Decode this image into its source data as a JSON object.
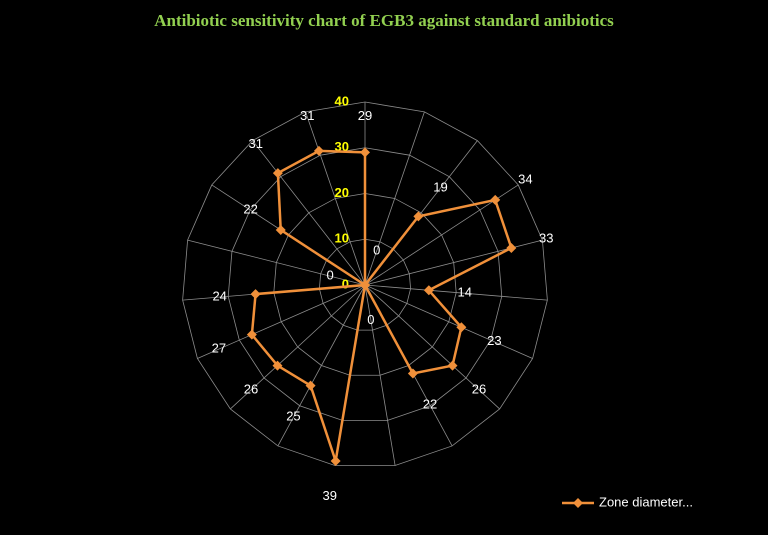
{
  "chart_data": {
    "type": "radar",
    "title": "Antibiotic  sensitivity chart of  EGB3 against standard  anibiotics",
    "series": [
      {
        "name": "Zone diameter...",
        "color": "#f0903a",
        "values": [
          29,
          0,
          19,
          34,
          33,
          14,
          23,
          26,
          22,
          0,
          39,
          25,
          26,
          27,
          24,
          0,
          22,
          31,
          31
        ]
      }
    ],
    "rlim": [
      0,
      40
    ],
    "rticks": [
      0,
      10,
      20,
      30,
      40
    ],
    "grid": true,
    "legend": "bottom-right"
  }
}
